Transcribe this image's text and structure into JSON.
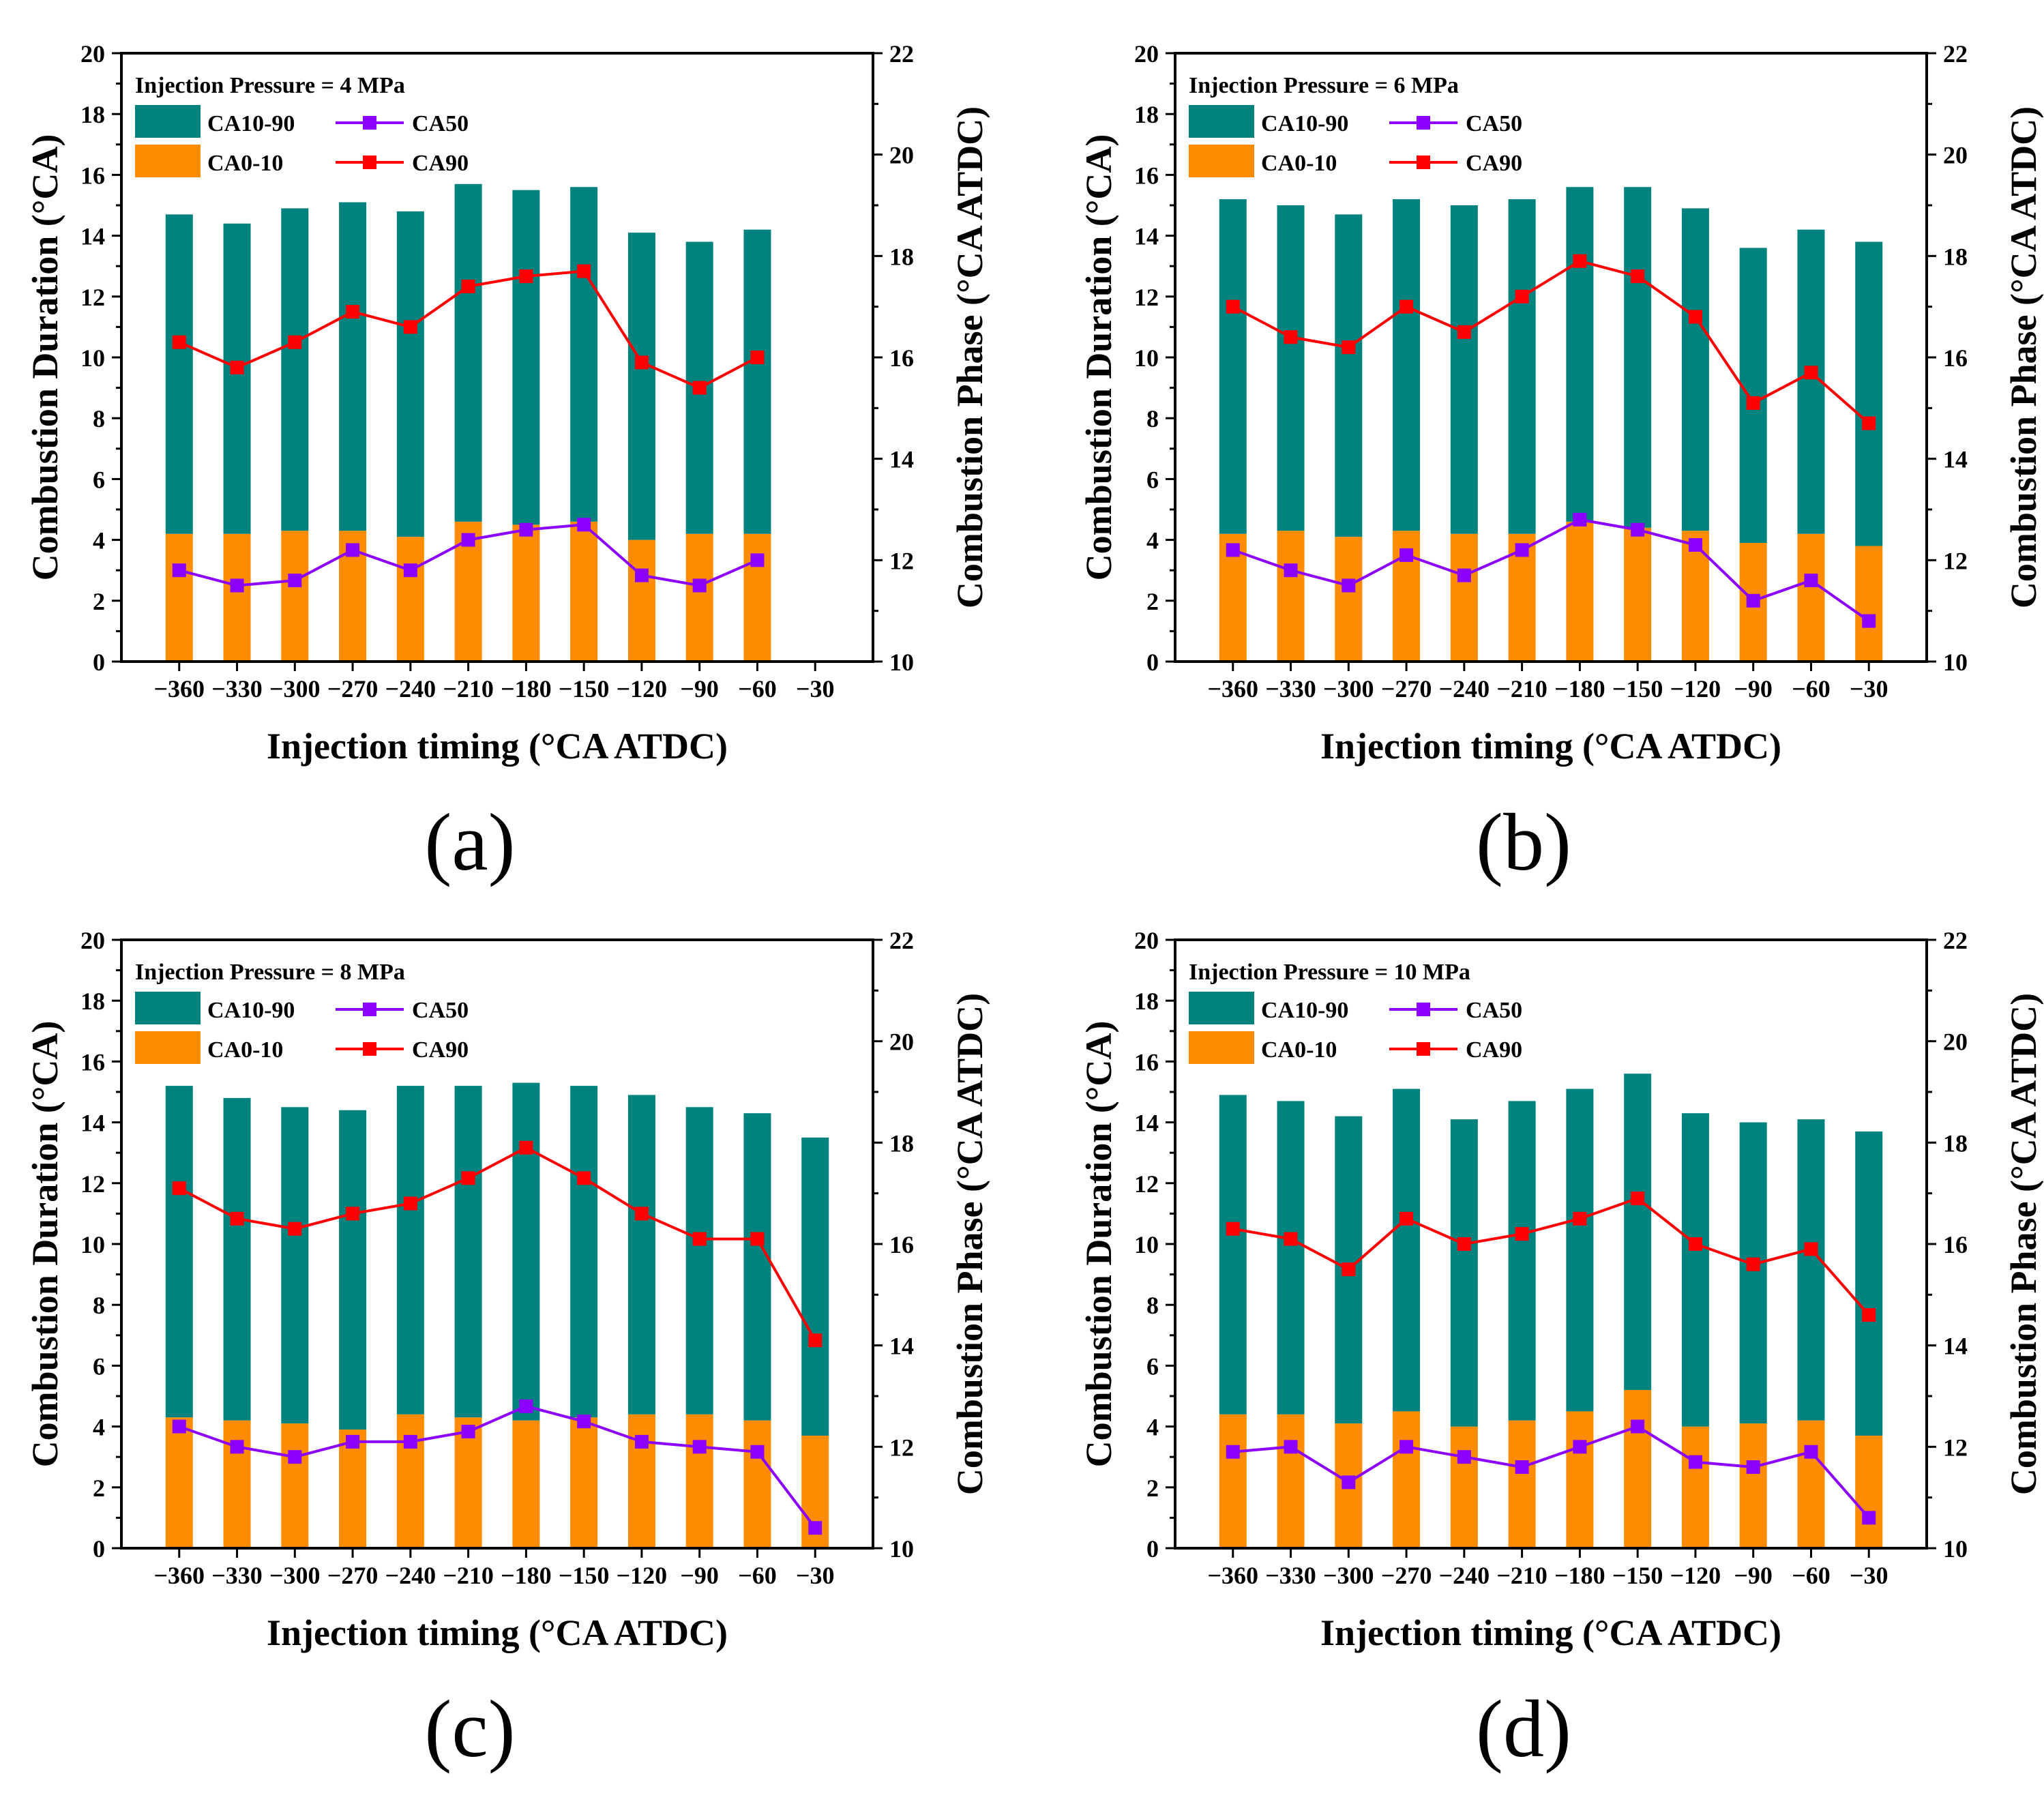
{
  "colors": {
    "ca10_90": "#00827F",
    "ca0_10": "#FF8C00",
    "ca50": "#8B00FF",
    "ca90": "#FF0000",
    "axis": "#000000"
  },
  "chart_data": [
    {
      "panel": "(a)",
      "type": "bar",
      "legend_title": "Injection Pressure = 4 MPa",
      "legend_labels": {
        "ca10_90": "CA10-90",
        "ca0_10": "CA0-10",
        "ca50": "CA50",
        "ca90": "CA90"
      },
      "xlabel": "Injection timing (°CA ATDC)",
      "ylabel": "Combustion Duration (°CA)",
      "y2label": "Combustion Phase (°CA ATDC)",
      "ylim": [
        0,
        20
      ],
      "y2lim": [
        10,
        22
      ],
      "yticks": [
        "0",
        "2",
        "4",
        "6",
        "8",
        "10",
        "12",
        "14",
        "16",
        "18",
        "20"
      ],
      "y2ticks": [
        "10",
        "12",
        "14",
        "16",
        "18",
        "20",
        "22"
      ],
      "categories": [
        "−360",
        "−330",
        "−300",
        "−270",
        "−240",
        "−210",
        "−180",
        "−150",
        "−120",
        "−90",
        "−60",
        "−30"
      ],
      "series": [
        {
          "name": "CA0-10",
          "kind": "bar",
          "values": [
            4.2,
            4.2,
            4.3,
            4.3,
            4.1,
            4.6,
            4.5,
            4.6,
            4.0,
            4.2,
            4.2,
            null
          ]
        },
        {
          "name": "CA10-90",
          "kind": "bar",
          "values": [
            10.5,
            10.2,
            10.6,
            10.8,
            10.7,
            11.1,
            11.0,
            11.0,
            10.1,
            9.6,
            10.0,
            null
          ]
        },
        {
          "name": "CA50",
          "kind": "line",
          "values": [
            11.8,
            11.5,
            11.6,
            12.2,
            11.8,
            12.4,
            12.6,
            12.7,
            11.7,
            11.5,
            12.0,
            null
          ]
        },
        {
          "name": "CA90",
          "kind": "line",
          "values": [
            16.3,
            15.8,
            16.3,
            16.9,
            16.6,
            17.4,
            17.6,
            17.7,
            15.9,
            15.4,
            16.0,
            null
          ]
        }
      ]
    },
    {
      "panel": "(b)",
      "type": "bar",
      "legend_title": "Injection Pressure = 6 MPa",
      "legend_labels": {
        "ca10_90": "CA10-90",
        "ca0_10": "CA0-10",
        "ca50": "CA50",
        "ca90": "CA90"
      },
      "xlabel": "Injection timing (°CA ATDC)",
      "ylabel": "Combustion Duration (°CA)",
      "y2label": "Combustion Phase (°CA ATDC)",
      "ylim": [
        0,
        20
      ],
      "y2lim": [
        10,
        22
      ],
      "yticks": [
        "0",
        "2",
        "4",
        "6",
        "8",
        "10",
        "12",
        "14",
        "16",
        "18",
        "20"
      ],
      "y2ticks": [
        "10",
        "12",
        "14",
        "16",
        "18",
        "20",
        "22"
      ],
      "categories": [
        "−360",
        "−330",
        "−300",
        "−270",
        "−240",
        "−210",
        "−180",
        "−150",
        "−120",
        "−90",
        "−60",
        "−30"
      ],
      "series": [
        {
          "name": "CA0-10",
          "kind": "bar",
          "values": [
            4.2,
            4.3,
            4.1,
            4.3,
            4.2,
            4.2,
            4.6,
            4.4,
            4.3,
            3.9,
            4.2,
            3.8
          ]
        },
        {
          "name": "CA10-90",
          "kind": "bar",
          "values": [
            11.0,
            10.7,
            10.6,
            10.9,
            10.8,
            11.0,
            11.0,
            11.2,
            10.6,
            9.7,
            10.0,
            10.0
          ]
        },
        {
          "name": "CA50",
          "kind": "line",
          "values": [
            12.2,
            11.8,
            11.5,
            12.1,
            11.7,
            12.2,
            12.8,
            12.6,
            12.3,
            11.2,
            11.6,
            10.8
          ]
        },
        {
          "name": "CA90",
          "kind": "line",
          "values": [
            17.0,
            16.4,
            16.2,
            17.0,
            16.5,
            17.2,
            17.9,
            17.6,
            16.8,
            15.1,
            15.7,
            14.7
          ]
        }
      ]
    },
    {
      "panel": "(c)",
      "type": "bar",
      "legend_title": "Injection Pressure = 8 MPa",
      "legend_labels": {
        "ca10_90": "CA10-90",
        "ca0_10": "CA0-10",
        "ca50": "CA50",
        "ca90": "CA90"
      },
      "xlabel": "Injection timing (°CA ATDC)",
      "ylabel": "Combustion Duration (°CA)",
      "y2label": "Combustion Phase (°CA ATDC)",
      "ylim": [
        0,
        20
      ],
      "y2lim": [
        10,
        22
      ],
      "yticks": [
        "0",
        "2",
        "4",
        "6",
        "8",
        "10",
        "12",
        "14",
        "16",
        "18",
        "20"
      ],
      "y2ticks": [
        "10",
        "12",
        "14",
        "16",
        "18",
        "20",
        "22"
      ],
      "categories": [
        "−360",
        "−330",
        "−300",
        "−270",
        "−240",
        "−210",
        "−180",
        "−150",
        "−120",
        "−90",
        "−60",
        "−30"
      ],
      "series": [
        {
          "name": "CA0-10",
          "kind": "bar",
          "values": [
            4.3,
            4.2,
            4.1,
            3.9,
            4.4,
            4.3,
            4.2,
            4.3,
            4.4,
            4.4,
            4.2,
            3.7
          ]
        },
        {
          "name": "CA10-90",
          "kind": "bar",
          "values": [
            10.9,
            10.6,
            10.4,
            10.5,
            10.8,
            10.9,
            11.1,
            10.9,
            10.5,
            10.1,
            10.1,
            9.8
          ]
        },
        {
          "name": "CA50",
          "kind": "line",
          "values": [
            12.4,
            12.0,
            11.8,
            12.1,
            12.1,
            12.3,
            12.8,
            12.5,
            12.1,
            12.0,
            11.9,
            10.4
          ]
        },
        {
          "name": "CA90",
          "kind": "line",
          "values": [
            17.1,
            16.5,
            16.3,
            16.6,
            16.8,
            17.3,
            17.9,
            17.3,
            16.6,
            16.1,
            16.1,
            14.1
          ]
        }
      ]
    },
    {
      "panel": "(d)",
      "type": "bar",
      "legend_title": "Injection Pressure = 10 MPa",
      "legend_labels": {
        "ca10_90": "CA10-90",
        "ca0_10": "CA0-10",
        "ca50": "CA50",
        "ca90": "CA90"
      },
      "xlabel": "Injection timing (°CA ATDC)",
      "ylabel": "Combustion Duration (°CA)",
      "y2label": "Combustion Phase (°CA ATDC)",
      "ylim": [
        0,
        20
      ],
      "y2lim": [
        10,
        22
      ],
      "yticks": [
        "0",
        "2",
        "4",
        "6",
        "8",
        "10",
        "12",
        "14",
        "16",
        "18",
        "20"
      ],
      "y2ticks": [
        "10",
        "12",
        "14",
        "16",
        "18",
        "20",
        "22"
      ],
      "categories": [
        "−360",
        "−330",
        "−300",
        "−270",
        "−240",
        "−210",
        "−180",
        "−150",
        "−120",
        "−90",
        "−60",
        "−30"
      ],
      "series": [
        {
          "name": "CA0-10",
          "kind": "bar",
          "values": [
            4.4,
            4.4,
            4.1,
            4.5,
            4.0,
            4.2,
            4.5,
            5.2,
            4.0,
            4.1,
            4.2,
            3.7
          ]
        },
        {
          "name": "CA10-90",
          "kind": "bar",
          "values": [
            10.5,
            10.3,
            10.1,
            10.6,
            10.1,
            10.5,
            10.6,
            10.4,
            10.3,
            9.9,
            9.9,
            10.0
          ]
        },
        {
          "name": "CA50",
          "kind": "line",
          "values": [
            11.9,
            12.0,
            11.3,
            12.0,
            11.8,
            11.6,
            12.0,
            12.4,
            11.7,
            11.6,
            11.9,
            10.6
          ]
        },
        {
          "name": "CA90",
          "kind": "line",
          "values": [
            16.3,
            16.1,
            15.5,
            16.5,
            16.0,
            16.2,
            16.5,
            16.9,
            16.0,
            15.6,
            15.9,
            14.6
          ]
        }
      ]
    }
  ]
}
